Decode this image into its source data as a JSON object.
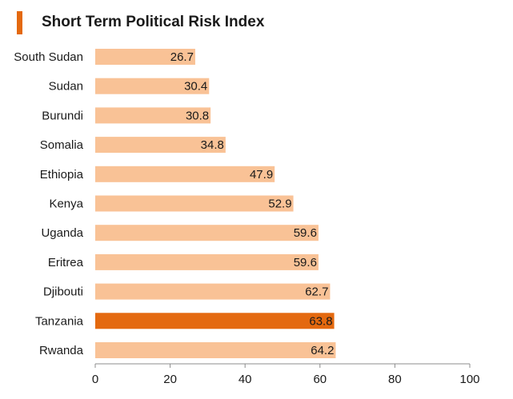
{
  "chart_data": {
    "type": "bar",
    "orientation": "horizontal",
    "title": "Short Term Political Risk Index",
    "categories": [
      "South Sudan",
      "Sudan",
      "Burundi",
      "Somalia",
      "Ethiopia",
      "Kenya",
      "Uganda",
      "Eritrea",
      "Djibouti",
      "Tanzania",
      "Rwanda"
    ],
    "values": [
      26.7,
      30.4,
      30.8,
      34.8,
      47.9,
      52.9,
      59.6,
      59.6,
      62.7,
      63.8,
      64.2
    ],
    "value_labels": [
      "26.7",
      "30.4",
      "30.8",
      "34.8",
      "47.9",
      "52.9",
      "59.6",
      "59.6",
      "62.7",
      "63.8",
      "64.2"
    ],
    "highlight": "Tanzania",
    "xlim": [
      0,
      100
    ],
    "xticks": [
      "0",
      "20",
      "40",
      "60",
      "80",
      "100"
    ],
    "xlabel": "",
    "ylabel": "",
    "grid": false,
    "colors": {
      "bar": "#f9c296",
      "highlight": "#e4690f",
      "accent": "#e4690f",
      "axis": "#8c8c8c"
    }
  }
}
